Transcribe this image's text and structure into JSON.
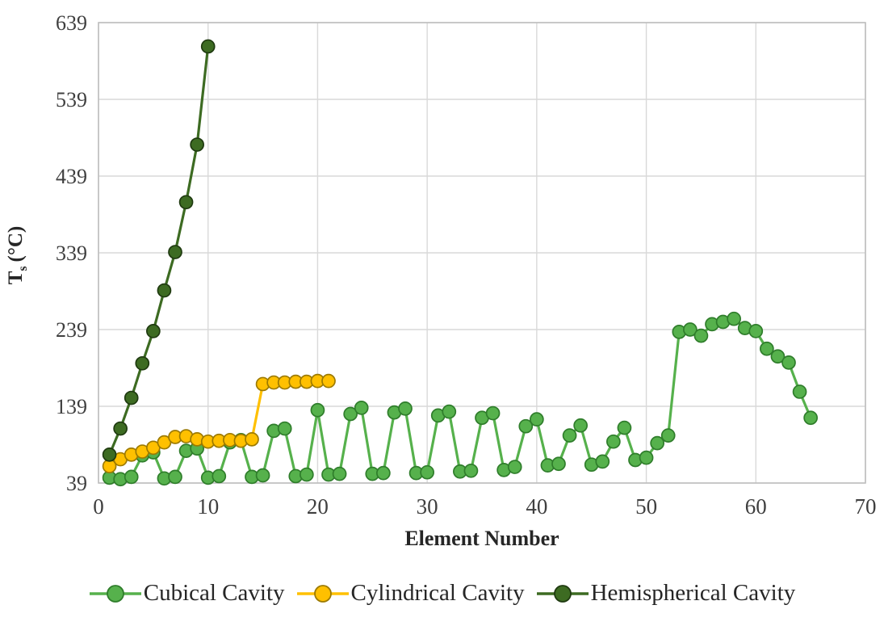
{
  "chart_data": {
    "type": "line",
    "title": "",
    "xlabel": "Element Number",
    "ylabel": {
      "prefix": "T",
      "sub": "s",
      "suffix": "(°C)"
    },
    "xlim": [
      0,
      70
    ],
    "ylim": [
      39,
      639
    ],
    "xticks": [
      0,
      10,
      20,
      30,
      40,
      50,
      60,
      70
    ],
    "yticks": [
      39,
      139,
      239,
      339,
      439,
      539,
      639
    ],
    "grid": true,
    "grid_color": "#d9d9d9",
    "border_color": "#bfbfbf",
    "legend_position": "bottom",
    "series": [
      {
        "name": "Cubical Cavity",
        "color": "#56b14c",
        "edge": "#2f7d2b",
        "points": [
          [
            1,
            46
          ],
          [
            2,
            44
          ],
          [
            3,
            47
          ],
          [
            4,
            75
          ],
          [
            5,
            79
          ],
          [
            6,
            45
          ],
          [
            7,
            47
          ],
          [
            8,
            81
          ],
          [
            9,
            84
          ],
          [
            10,
            46
          ],
          [
            11,
            48
          ],
          [
            12,
            92
          ],
          [
            13,
            95
          ],
          [
            14,
            47
          ],
          [
            15,
            49
          ],
          [
            16,
            107
          ],
          [
            17,
            110
          ],
          [
            18,
            48
          ],
          [
            19,
            50
          ],
          [
            20,
            134
          ],
          [
            21,
            50
          ],
          [
            22,
            51
          ],
          [
            23,
            129
          ],
          [
            24,
            137
          ],
          [
            25,
            51
          ],
          [
            26,
            52
          ],
          [
            27,
            131
          ],
          [
            28,
            136
          ],
          [
            29,
            52
          ],
          [
            30,
            53
          ],
          [
            31,
            127
          ],
          [
            32,
            132
          ],
          [
            33,
            54
          ],
          [
            34,
            55
          ],
          [
            35,
            124
          ],
          [
            36,
            130
          ],
          [
            37,
            56
          ],
          [
            38,
            60
          ],
          [
            39,
            113
          ],
          [
            40,
            122
          ],
          [
            41,
            62
          ],
          [
            42,
            64
          ],
          [
            43,
            101
          ],
          [
            44,
            114
          ],
          [
            45,
            63
          ],
          [
            46,
            67
          ],
          [
            47,
            93
          ],
          [
            48,
            111
          ],
          [
            49,
            69
          ],
          [
            50,
            72
          ],
          [
            51,
            91
          ],
          [
            52,
            101
          ],
          [
            53,
            236
          ],
          [
            54,
            239
          ],
          [
            55,
            231
          ],
          [
            56,
            246
          ],
          [
            57,
            249
          ],
          [
            58,
            253
          ],
          [
            59,
            241
          ],
          [
            60,
            237
          ],
          [
            61,
            214
          ],
          [
            62,
            204
          ],
          [
            63,
            196
          ],
          [
            64,
            158
          ],
          [
            65,
            124
          ]
        ]
      },
      {
        "name": "Cylindrical Cavity",
        "color": "#ffc000",
        "edge": "#9c7a00",
        "points": [
          [
            1,
            61
          ],
          [
            2,
            70
          ],
          [
            3,
            76
          ],
          [
            4,
            80
          ],
          [
            5,
            85
          ],
          [
            6,
            92
          ],
          [
            7,
            99
          ],
          [
            8,
            100
          ],
          [
            9,
            96
          ],
          [
            10,
            93
          ],
          [
            11,
            94
          ],
          [
            12,
            95
          ],
          [
            13,
            94
          ],
          [
            14,
            96
          ],
          [
            15,
            168
          ],
          [
            16,
            170
          ],
          [
            17,
            170
          ],
          [
            18,
            171
          ],
          [
            19,
            171
          ],
          [
            20,
            172
          ],
          [
            21,
            172
          ]
        ]
      },
      {
        "name": "Hemispherical Cavity",
        "color": "#3d6b22",
        "edge": "#1f3a10",
        "points": [
          [
            1,
            76
          ],
          [
            2,
            110
          ],
          [
            3,
            150
          ],
          [
            4,
            195
          ],
          [
            5,
            237
          ],
          [
            6,
            290
          ],
          [
            7,
            340
          ],
          [
            8,
            405
          ],
          [
            9,
            480
          ],
          [
            10,
            608
          ]
        ]
      }
    ]
  }
}
